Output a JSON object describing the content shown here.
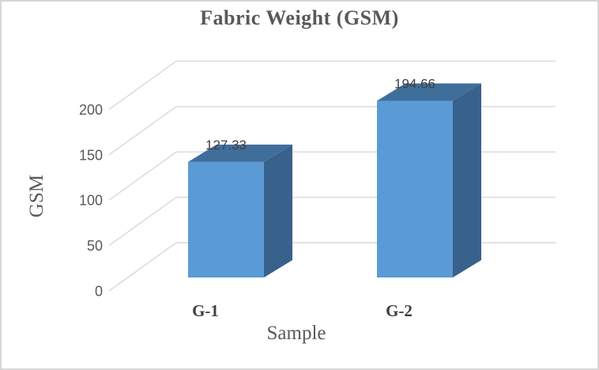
{
  "frame": {
    "background": "#ffffff",
    "border_color": "#d6d6d6"
  },
  "chart_data": {
    "type": "bar",
    "projection": "3d",
    "title": "Fabric Weight (GSM)",
    "xlabel": "Sample",
    "ylabel": "GSM",
    "categories": [
      "G-1",
      "G-2"
    ],
    "values": [
      127.33,
      194.66
    ],
    "data_labels": [
      "127.33",
      "194.66"
    ],
    "yticks": [
      0,
      50,
      100,
      150,
      200
    ],
    "ylim": [
      0,
      200
    ],
    "grid": true,
    "legend": false,
    "colors": {
      "bar_front": "#5B9BD5",
      "bar_top": "#406E9B",
      "bar_side": "#38618C",
      "gridline": "#D9D9D9",
      "title_text": "#595959",
      "tick_text": "#595959",
      "data_label_text": "#404040",
      "category_text": "#3F3F3F",
      "axis_title_text": "#595959"
    }
  }
}
